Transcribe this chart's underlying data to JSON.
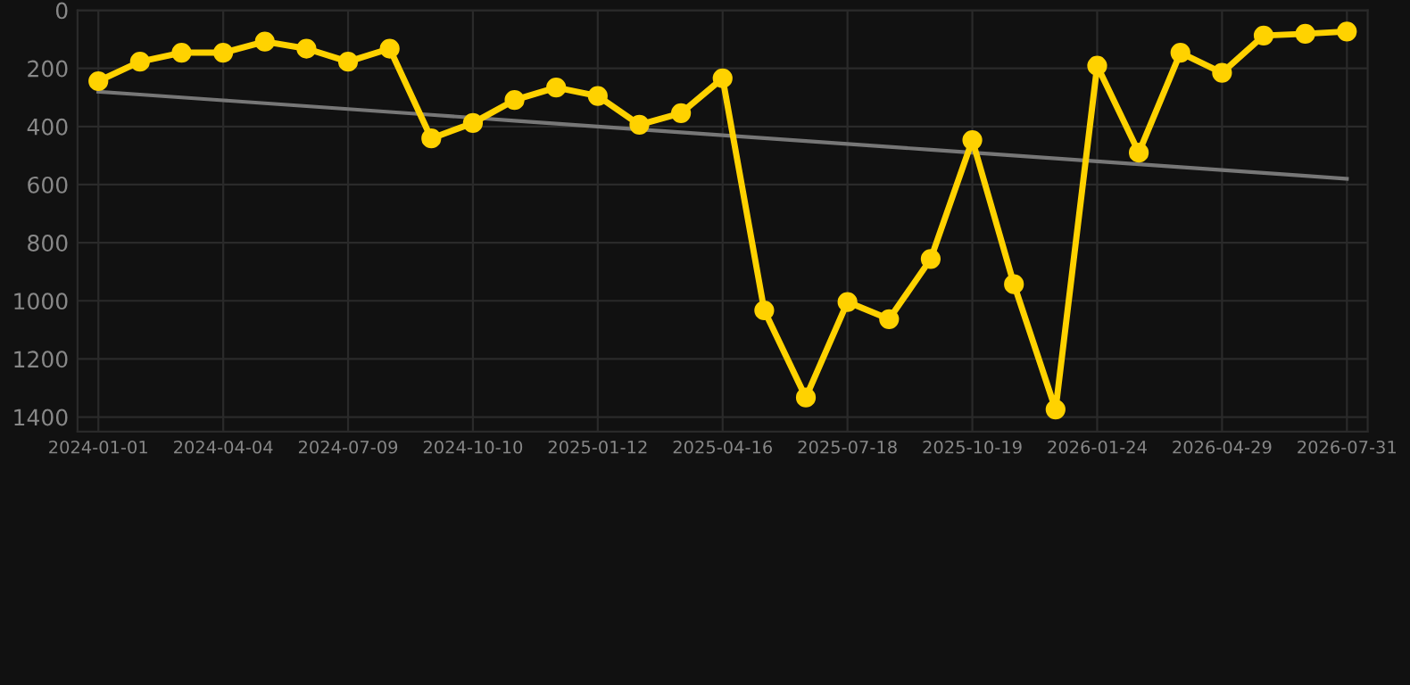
{
  "chart_data": {
    "type": "line",
    "categories": [
      "2024-01-01",
      null,
      null,
      "2024-04-04",
      null,
      null,
      "2024-07-09",
      null,
      null,
      "2024-10-10",
      null,
      null,
      "2025-01-12",
      null,
      null,
      "2025-04-16",
      null,
      null,
      "2025-07-18",
      null,
      null,
      "2025-10-19",
      null,
      null,
      "2026-01-24",
      null,
      null,
      "2026-04-29",
      null,
      null,
      "2026-07-31"
    ],
    "series": [
      {
        "color": "#ffd200",
        "values": [
          244,
          177,
          146,
          146,
          108,
          132,
          177,
          132,
          441,
          388,
          309,
          266,
          295,
          394,
          354,
          234,
          1033,
          1333,
          1004,
          1063,
          856,
          447,
          943,
          1374,
          191,
          490,
          146,
          215,
          87,
          81,
          73
        ]
      },
      {
        "type": "line",
        "marker": "none",
        "color": "#777777",
        "values": [
          280,
          290,
          300,
          310,
          320,
          330,
          340,
          350,
          360,
          370,
          380,
          390,
          400,
          410,
          420,
          430,
          440,
          450,
          460,
          470,
          480,
          490,
          500,
          510,
          520,
          530,
          540,
          550,
          560,
          570,
          580
        ]
      }
    ],
    "ylim": [
      1450,
      0
    ],
    "yticks": [
      0,
      200,
      400,
      600,
      800,
      1000,
      1200,
      1400
    ],
    "grid": true,
    "marker": "circle",
    "line_style": "solid"
  }
}
